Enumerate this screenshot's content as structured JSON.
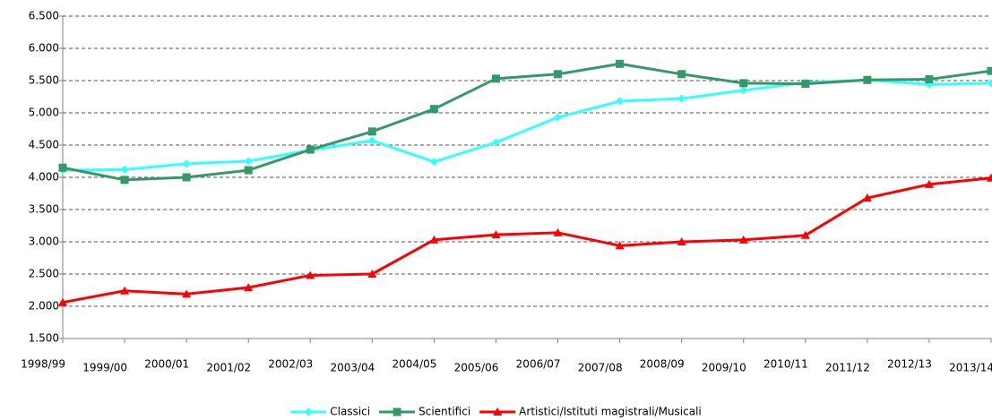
{
  "chart_data": {
    "type": "line",
    "categories": [
      "1998/99",
      "1999/00",
      "2000/01",
      "2001/02",
      "2002/03",
      "2003/04",
      "2004/05",
      "2005/06",
      "2006/07",
      "2007/08",
      "2008/09",
      "2009/10",
      "2010/11",
      "2011/12",
      "2012/13",
      "2013/14"
    ],
    "series": [
      {
        "name": "Classici",
        "color": "#33ffff",
        "marker": "diamond",
        "values": [
          4110,
          4120,
          4210,
          4250,
          4420,
          4570,
          4240,
          4540,
          4930,
          5180,
          5220,
          5350,
          5470,
          5510,
          5440,
          5460
        ]
      },
      {
        "name": "Scientifici",
        "color": "#339966",
        "marker": "square",
        "values": [
          4150,
          3960,
          4000,
          4110,
          4430,
          4710,
          5060,
          5530,
          5600,
          5760,
          5600,
          5460,
          5450,
          5510,
          5520,
          5650
        ]
      },
      {
        "name": "Artistici/Istituti magistrali/Musicali",
        "color": "#ff0000",
        "marker": "triangle",
        "values": [
          2060,
          2240,
          2190,
          2290,
          2480,
          2500,
          3030,
          3110,
          3140,
          2940,
          3000,
          3030,
          3100,
          3680,
          3890,
          3990
        ]
      }
    ],
    "ylim": [
      1500,
      6500
    ],
    "yticks": [
      {
        "value": 1500,
        "label": "1.500"
      },
      {
        "value": 2000,
        "label": "2.000"
      },
      {
        "value": 2500,
        "label": "2.500"
      },
      {
        "value": 3000,
        "label": "3.000"
      },
      {
        "value": 3500,
        "label": "3.500"
      },
      {
        "value": 4000,
        "label": "4.000"
      },
      {
        "value": 4500,
        "label": "4.500"
      },
      {
        "value": 5000,
        "label": "5.000"
      },
      {
        "value": 5500,
        "label": "5.500"
      },
      {
        "value": 6000,
        "label": "6.000"
      },
      {
        "value": 6500,
        "label": "6.500"
      }
    ],
    "grid": true,
    "legend": "bottom"
  }
}
